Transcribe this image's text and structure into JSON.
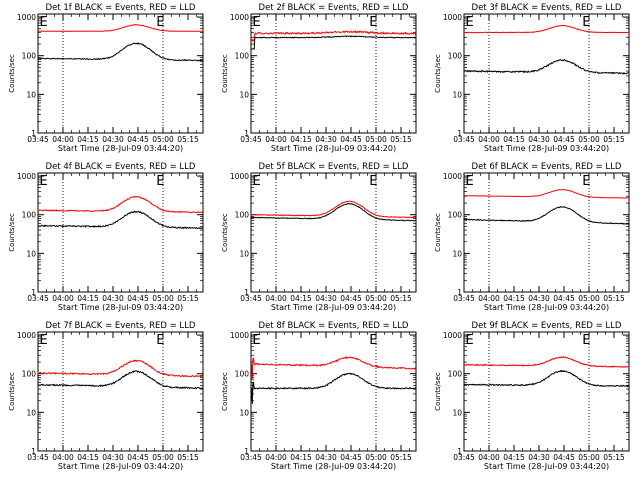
{
  "page": {
    "background": "#ffffff"
  },
  "colors": {
    "events": "#000000",
    "lld": "#ff0000",
    "axis": "#000000"
  },
  "chart_data": [
    {
      "type": "line",
      "title": "Det 1f BLACK = Events, RED = LLD",
      "xlabel": "Start Time (28-Jul-09 03:44:20)",
      "ylabel": "Counts/sec",
      "x_ticks": [
        "03:45",
        "04:00",
        "04:15",
        "04:30",
        "04:45",
        "05:00",
        "05:15"
      ],
      "y_ticks": [
        "1",
        "10",
        "100",
        "1000"
      ],
      "y_scale": "log",
      "ylim": [
        1,
        1200
      ],
      "xlim": [
        "03:45",
        "05:24"
      ],
      "dotted_lines": [
        "04:00",
        "05:00"
      ],
      "markers": [
        "E",
        "E"
      ],
      "series": [
        {
          "color": "#ff0000",
          "pattern": "bump",
          "base": 430,
          "peak": 630,
          "noise": 0.012
        },
        {
          "color": "#000000",
          "pattern": "bump",
          "base": 85,
          "peak": 215,
          "noise": 0.03,
          "end": 75
        }
      ]
    },
    {
      "type": "line",
      "title": "Det 2f BLACK = Events, RED = LLD",
      "xlabel": "Start Time (28-Jul-09 03:44:20)",
      "ylabel": "Counts/sec",
      "x_ticks": [
        "03:45",
        "04:00",
        "04:15",
        "04:30",
        "04:45",
        "05:00",
        "05:15"
      ],
      "y_ticks": [
        "1",
        "10",
        "100",
        "1000"
      ],
      "y_scale": "log",
      "ylim": [
        1,
        1200
      ],
      "xlim": [
        "03:45",
        "05:24"
      ],
      "dotted_lines": [
        "04:00",
        "05:00"
      ],
      "markers": [
        "E",
        "E"
      ],
      "series": [
        {
          "color": "#ff0000",
          "pattern": "flat",
          "base": 380,
          "peak": 460,
          "noise": 0.05,
          "start_drop": 250
        },
        {
          "color": "#000000",
          "pattern": "flat",
          "base": 295,
          "peak": 340,
          "noise": 0.02,
          "start_drop": 150
        }
      ]
    },
    {
      "type": "line",
      "title": "Det 3f BLACK = Events, RED = LLD",
      "xlabel": "Start Time (28-Jul-09 03:44:20)",
      "ylabel": "Counts/sec",
      "x_ticks": [
        "03:45",
        "04:00",
        "04:15",
        "04:30",
        "04:45",
        "05:00",
        "05:15"
      ],
      "y_ticks": [
        "1",
        "10",
        "100",
        "1000"
      ],
      "y_scale": "log",
      "ylim": [
        1,
        1200
      ],
      "xlim": [
        "03:45",
        "05:24"
      ],
      "dotted_lines": [
        "04:00",
        "05:00"
      ],
      "markers": [
        "E",
        "E"
      ],
      "series": [
        {
          "color": "#ff0000",
          "pattern": "bump",
          "base": 400,
          "peak": 600,
          "noise": 0.015
        },
        {
          "color": "#000000",
          "pattern": "bump",
          "base": 40,
          "peak": 80,
          "noise": 0.04,
          "end": 35
        }
      ]
    },
    {
      "type": "line",
      "title": "Det 4f BLACK = Events, RED = LLD",
      "xlabel": "Start Time (28-Jul-09 03:44:20)",
      "ylabel": "Counts/sec",
      "x_ticks": [
        "03:45",
        "04:00",
        "04:15",
        "04:30",
        "04:45",
        "05:00",
        "05:15"
      ],
      "y_ticks": [
        "1",
        "10",
        "100",
        "1000"
      ],
      "y_scale": "log",
      "ylim": [
        1,
        1200
      ],
      "xlim": [
        "03:45",
        "05:24"
      ],
      "dotted_lines": [
        "04:00",
        "05:00"
      ],
      "markers": [
        "E",
        "E"
      ],
      "series": [
        {
          "color": "#ff0000",
          "pattern": "bump",
          "base": 130,
          "peak": 300,
          "noise": 0.03,
          "end": 115
        },
        {
          "color": "#000000",
          "pattern": "bump",
          "base": 52,
          "peak": 125,
          "noise": 0.035,
          "end": 45
        }
      ]
    },
    {
      "type": "line",
      "title": "Det 5f BLACK = Events, RED = LLD",
      "xlabel": "Start Time (28-Jul-09 03:44:20)",
      "ylabel": "Counts/sec",
      "x_ticks": [
        "03:45",
        "04:00",
        "04:15",
        "04:30",
        "04:45",
        "05:00",
        "05:15"
      ],
      "y_ticks": [
        "1",
        "10",
        "100",
        "1000"
      ],
      "y_scale": "log",
      "ylim": [
        1,
        1200
      ],
      "xlim": [
        "03:45",
        "05:24"
      ],
      "dotted_lines": [
        "04:00",
        "05:00"
      ],
      "markers": [
        "E",
        "E"
      ],
      "series": [
        {
          "color": "#ff0000",
          "pattern": "bump",
          "base": 100,
          "peak": 230,
          "noise": 0.02,
          "end": 85
        },
        {
          "color": "#000000",
          "pattern": "bump",
          "base": 85,
          "peak": 200,
          "noise": 0.02,
          "end": 70
        }
      ]
    },
    {
      "type": "line",
      "title": "Det 6f BLACK = Events, RED = LLD",
      "xlabel": "Start Time (28-Jul-09 03:44:20)",
      "ylabel": "Counts/sec",
      "x_ticks": [
        "03:45",
        "04:00",
        "04:15",
        "04:30",
        "04:45",
        "05:00",
        "05:15"
      ],
      "y_ticks": [
        "1",
        "10",
        "100",
        "1000"
      ],
      "y_scale": "log",
      "ylim": [
        1,
        1200
      ],
      "xlim": [
        "03:45",
        "05:24"
      ],
      "dotted_lines": [
        "04:00",
        "05:00"
      ],
      "markers": [
        "E",
        "E"
      ],
      "series": [
        {
          "color": "#ff0000",
          "pattern": "bump",
          "base": 310,
          "peak": 470,
          "noise": 0.01,
          "end": 270
        },
        {
          "color": "#000000",
          "pattern": "bump",
          "base": 75,
          "peak": 170,
          "noise": 0.025,
          "end": 58
        }
      ]
    },
    {
      "type": "line",
      "title": "Det 7f BLACK = Events, RED = LLD",
      "xlabel": "Start Time (28-Jul-09 03:44:20)",
      "ylabel": "Counts/sec",
      "x_ticks": [
        "03:45",
        "04:00",
        "04:15",
        "04:30",
        "04:45",
        "05:00",
        "05:15"
      ],
      "y_ticks": [
        "1",
        "10",
        "100",
        "1000"
      ],
      "y_scale": "log",
      "ylim": [
        1,
        1200
      ],
      "xlim": [
        "03:45",
        "05:24"
      ],
      "dotted_lines": [
        "04:00",
        "05:00"
      ],
      "markers": [
        "E",
        "E"
      ],
      "series": [
        {
          "color": "#ff0000",
          "pattern": "bump",
          "base": 105,
          "peak": 230,
          "noise": 0.04,
          "end": 85
        },
        {
          "color": "#000000",
          "pattern": "bump",
          "base": 52,
          "peak": 120,
          "noise": 0.04,
          "end": 42
        }
      ]
    },
    {
      "type": "line",
      "title": "Det 8f BLACK = Events, RED = LLD",
      "xlabel": "Start Time (28-Jul-09 03:44:20)",
      "ylabel": "Counts/sec",
      "x_ticks": [
        "03:45",
        "04:00",
        "04:15",
        "04:30",
        "04:45",
        "05:00",
        "05:15"
      ],
      "y_ticks": [
        "1",
        "10",
        "100",
        "1000"
      ],
      "y_scale": "log",
      "ylim": [
        1,
        1200
      ],
      "xlim": [
        "03:45",
        "05:24"
      ],
      "dotted_lines": [
        "04:00",
        "05:00"
      ],
      "markers": [
        "E",
        "E"
      ],
      "series": [
        {
          "color": "#ff0000",
          "pattern": "bump",
          "base": 180,
          "peak": 290,
          "noise": 0.04,
          "end": 135,
          "spike": 15
        },
        {
          "color": "#000000",
          "pattern": "bump",
          "base": 42,
          "peak": 100,
          "noise": 0.035,
          "end": 42,
          "spike": 15
        }
      ]
    },
    {
      "type": "line",
      "title": "Det 9f BLACK = Events, RED = LLD",
      "xlabel": "Start Time (28-Jul-09 03:44:20)",
      "ylabel": "Counts/sec",
      "x_ticks": [
        "03:45",
        "04:00",
        "04:15",
        "04:30",
        "04:45",
        "05:00",
        "05:15"
      ],
      "y_ticks": [
        "1",
        "10",
        "100",
        "1000"
      ],
      "y_scale": "log",
      "ylim": [
        1,
        1200
      ],
      "xlim": [
        "03:45",
        "05:24"
      ],
      "dotted_lines": [
        "04:00",
        "05:00"
      ],
      "markers": [
        "E",
        "E"
      ],
      "series": [
        {
          "color": "#ff0000",
          "pattern": "bump",
          "base": 170,
          "peak": 280,
          "noise": 0.03,
          "end": 150
        },
        {
          "color": "#000000",
          "pattern": "bump",
          "base": 52,
          "peak": 120,
          "noise": 0.035,
          "end": 48
        }
      ]
    }
  ]
}
